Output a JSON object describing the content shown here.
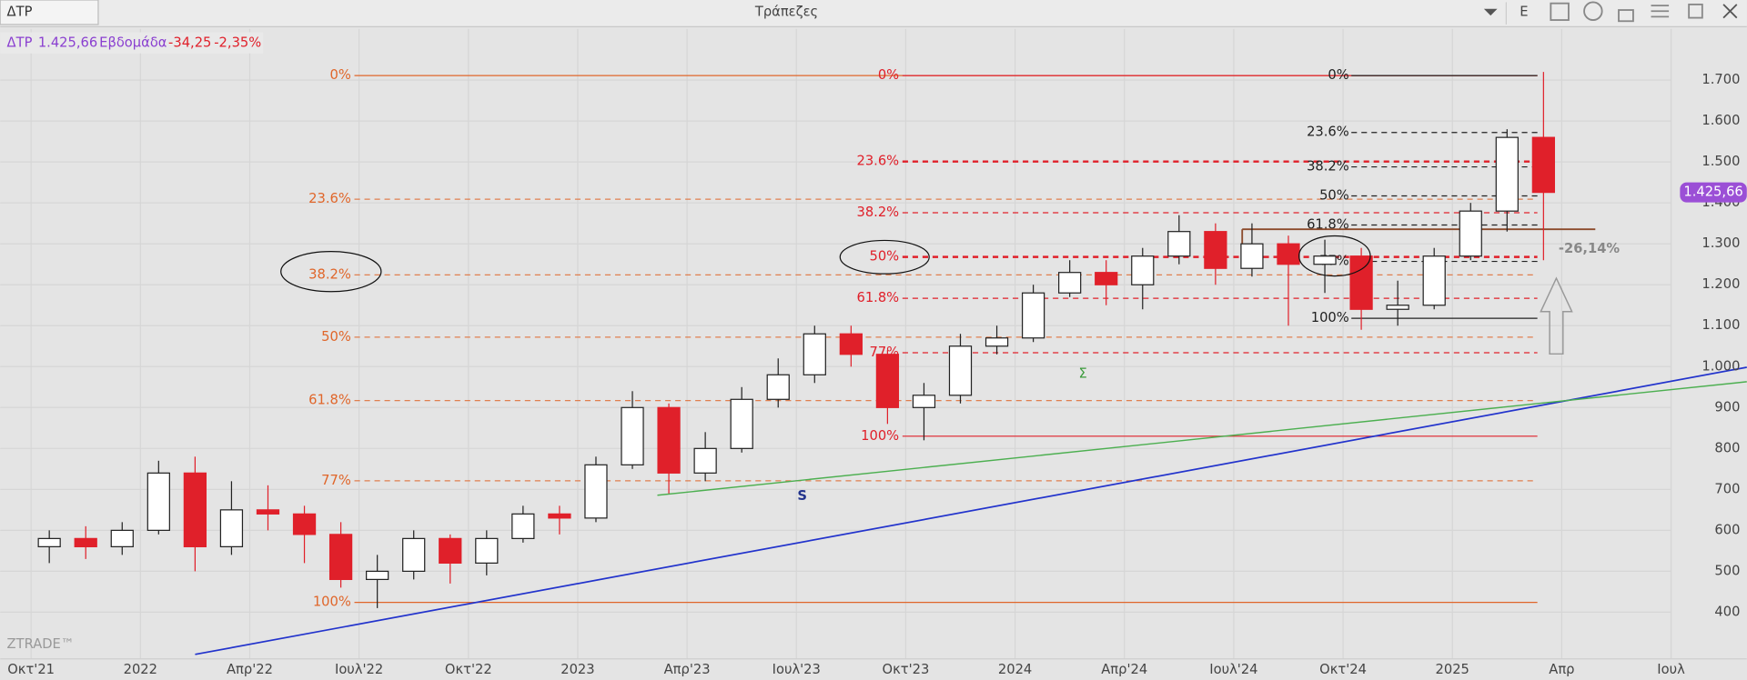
{
  "window_title": "Τράπεζες",
  "tab": "ΔΤΡ",
  "button": "E",
  "header": {
    "symbol": "ΔΤΡ",
    "price": "1.425,66",
    "period": "Εβδομάδα",
    "change": "-34,25",
    "change_pct": "-2,35%"
  },
  "brand": "ZTRADE™",
  "annotations": {
    "drawdown": "-26,14%",
    "support": "S",
    "sum": "Σ"
  },
  "chart_data": {
    "type": "candlestick",
    "x": [
      "2021-10",
      "2021-11",
      "2021-12",
      "2022-01",
      "2022-02",
      "2022-03",
      "2022-04",
      "2022-05",
      "2022-06",
      "2022-07",
      "2022-08",
      "2022-09",
      "2022-10",
      "2022-11",
      "2022-12",
      "2023-01",
      "2023-02",
      "2023-03",
      "2023-04",
      "2023-05",
      "2023-06",
      "2023-07",
      "2023-08",
      "2023-09",
      "2023-10",
      "2023-11",
      "2023-12",
      "2024-01",
      "2024-02",
      "2024-03",
      "2024-04",
      "2024-05",
      "2024-06",
      "2024-07",
      "2024-08",
      "2024-09",
      "2024-10",
      "2024-11",
      "2024-12",
      "2025-01",
      "2025-02",
      "2025-03"
    ],
    "open": [
      560,
      580,
      560,
      600,
      740,
      560,
      650,
      640,
      590,
      480,
      500,
      580,
      520,
      580,
      640,
      630,
      760,
      900,
      740,
      800,
      920,
      980,
      1080,
      1030,
      900,
      930,
      1050,
      1070,
      1180,
      1230,
      1200,
      1270,
      1330,
      1240,
      1300,
      1250,
      1270,
      1140,
      1150,
      1270,
      1380,
      1560
    ],
    "high": [
      600,
      610,
      620,
      770,
      780,
      720,
      710,
      660,
      620,
      540,
      600,
      590,
      600,
      660,
      660,
      780,
      940,
      910,
      840,
      950,
      1020,
      1100,
      1100,
      1040,
      960,
      1080,
      1100,
      1200,
      1260,
      1260,
      1290,
      1370,
      1350,
      1350,
      1320,
      1310,
      1290,
      1210,
      1290,
      1400,
      1580,
      1720
    ],
    "low": [
      520,
      530,
      540,
      590,
      500,
      540,
      600,
      520,
      460,
      410,
      480,
      470,
      490,
      570,
      590,
      620,
      750,
      690,
      720,
      790,
      900,
      960,
      1000,
      860,
      820,
      910,
      1030,
      1060,
      1170,
      1150,
      1140,
      1250,
      1200,
      1220,
      1100,
      1180,
      1090,
      1100,
      1140,
      1260,
      1330,
      1260
    ],
    "close": [
      580,
      560,
      600,
      740,
      560,
      650,
      640,
      590,
      480,
      500,
      580,
      520,
      580,
      640,
      630,
      760,
      900,
      740,
      800,
      920,
      980,
      1080,
      1030,
      900,
      930,
      1050,
      1070,
      1180,
      1230,
      1200,
      1270,
      1330,
      1240,
      1300,
      1250,
      1270,
      1140,
      1150,
      1270,
      1380,
      1560,
      1425.66
    ],
    "up_color": "#ffffff",
    "down_color": "#e0202a",
    "last_price": {
      "value": 1425.66,
      "label": "1.425,66"
    },
    "last_price_color": "#9b4fd6",
    "xlim": [
      "2021-09",
      "2025-07"
    ],
    "xticks": [
      {
        "value": "2021-10",
        "label": "Οκτ'21"
      },
      {
        "value": "2022-01",
        "label": "2022"
      },
      {
        "value": "2022-04",
        "label": "Απρ'22"
      },
      {
        "value": "2022-07",
        "label": "Ιουλ'22"
      },
      {
        "value": "2022-10",
        "label": "Οκτ'22"
      },
      {
        "value": "2023-01",
        "label": "2023"
      },
      {
        "value": "2023-04",
        "label": "Απρ'23"
      },
      {
        "value": "2023-07",
        "label": "Ιουλ'23"
      },
      {
        "value": "2023-10",
        "label": "Οκτ'23"
      },
      {
        "value": "2024-01",
        "label": "2024"
      },
      {
        "value": "2024-04",
        "label": "Απρ'24"
      },
      {
        "value": "2024-07",
        "label": "Ιουλ'24"
      },
      {
        "value": "2024-10",
        "label": "Οκτ'24"
      },
      {
        "value": "2025-01",
        "label": "2025"
      },
      {
        "value": "2025-04",
        "label": "Απρ"
      },
      {
        "value": "2025-07",
        "label": "Ιουλ"
      }
    ],
    "ylim": [
      286,
      1825
    ],
    "yticks": [
      400,
      500,
      600,
      700,
      800,
      900,
      {
        "value": 1000,
        "label": "1.000"
      },
      {
        "value": 1100,
        "label": "1.100"
      },
      {
        "value": 1200,
        "label": "1.200"
      },
      {
        "value": 1300,
        "label": "1.300"
      },
      {
        "value": 1400,
        "label": "1.400"
      },
      {
        "value": 1500,
        "label": "1.500"
      },
      {
        "value": 1600,
        "label": "1.600"
      },
      {
        "value": 1700,
        "label": "1.700"
      }
    ],
    "grid": true,
    "fibonacci": [
      {
        "color": "#e0662a",
        "levels": [
          {
            "label": "0%",
            "value": 1711
          },
          {
            "label": "23.6%",
            "value": 1409
          },
          {
            "label": "38.2%",
            "value": 1224
          },
          {
            "label": "50%",
            "value": 1072
          },
          {
            "label": "61.8%",
            "value": 917
          },
          {
            "label": "77%",
            "value": 721
          },
          {
            "label": "100%",
            "value": 424
          }
        ]
      },
      {
        "color": "#e0202a",
        "levels": [
          {
            "label": "0%",
            "value": 1711
          },
          {
            "label": "23.6%",
            "value": 1501
          },
          {
            "label": "38.2%",
            "value": 1376
          },
          {
            "label": "50%",
            "value": 1268
          },
          {
            "label": "61.8%",
            "value": 1167
          },
          {
            "label": "77%",
            "value": 1034
          },
          {
            "label": "100%",
            "value": 830
          }
        ]
      },
      {
        "color": "#222222",
        "levels": [
          {
            "label": "0%",
            "value": 1711
          },
          {
            "label": "23.6%",
            "value": 1572
          },
          {
            "label": "38.2%",
            "value": 1488
          },
          {
            "label": "50%",
            "value": 1417
          },
          {
            "label": "61.8%",
            "value": 1346
          },
          {
            "label": "77%",
            "value": 1257
          },
          {
            "label": "100%",
            "value": 1118
          }
        ]
      }
    ]
  }
}
